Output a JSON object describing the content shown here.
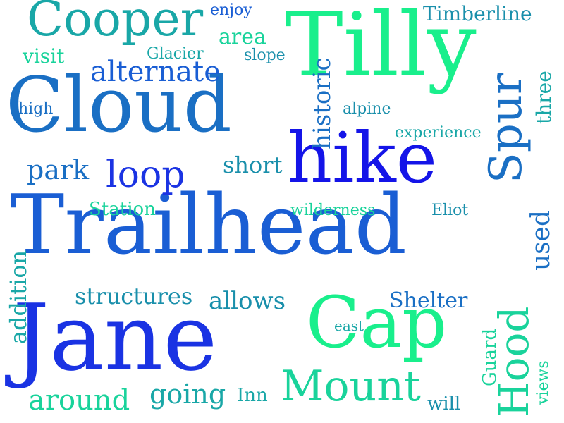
{
  "colors": {
    "background": "#ffffff",
    "bright_green": "#19ef8c",
    "sea_green": "#19d39b",
    "teal": "#19a7a7",
    "dark_teal": "#198fab",
    "steel_blue": "#1a6fc4",
    "mid_blue": "#1a5ed4",
    "royal_blue": "#1a33e3",
    "deep_blue": "#1414e8"
  },
  "words": [
    {
      "text": "Trailhead",
      "color": "#1a5ed4"
    },
    {
      "text": "Jane",
      "color": "#1a33e3"
    },
    {
      "text": "Tilly",
      "color": "#19ef8c"
    },
    {
      "text": "Cloud",
      "color": "#1a6fc4"
    },
    {
      "text": "hike",
      "color": "#1414e8"
    },
    {
      "text": "Cap",
      "color": "#19ef8c"
    },
    {
      "text": "Cooper",
      "color": "#19a7a7"
    },
    {
      "text": "Mount",
      "color": "#19d39b"
    },
    {
      "text": "Spur",
      "color": "#1a6fc4"
    },
    {
      "text": "Hood",
      "color": "#19d39b"
    },
    {
      "text": "loop",
      "color": "#1a33e3"
    },
    {
      "text": "alternate",
      "color": "#1a5ed4"
    },
    {
      "text": "Timberline",
      "color": "#198fab"
    },
    {
      "text": "used",
      "color": "#1a6fc4"
    },
    {
      "text": "historic",
      "color": "#1a6fc4"
    },
    {
      "text": "three",
      "color": "#19a7a7"
    },
    {
      "text": "park",
      "color": "#1a6fc4"
    },
    {
      "text": "short",
      "color": "#198fab"
    },
    {
      "text": "going",
      "color": "#19a7a7"
    },
    {
      "text": "around",
      "color": "#19d39b"
    },
    {
      "text": "allows",
      "color": "#198fab"
    },
    {
      "text": "structures",
      "color": "#198fab"
    },
    {
      "text": "Shelter",
      "color": "#1a6fc4"
    },
    {
      "text": "addition",
      "color": "#19a7a7"
    },
    {
      "text": "Station",
      "color": "#19d39b"
    },
    {
      "text": "area",
      "color": "#19d39b"
    },
    {
      "text": "visit",
      "color": "#19d39b"
    },
    {
      "text": "Guard",
      "color": "#19d39b"
    },
    {
      "text": "enjoy",
      "color": "#1a5ed4"
    },
    {
      "text": "Glacier",
      "color": "#19a7a7"
    },
    {
      "text": "slope",
      "color": "#198fab"
    },
    {
      "text": "high",
      "color": "#1a6fc4"
    },
    {
      "text": "alpine",
      "color": "#198fab"
    },
    {
      "text": "experience",
      "color": "#19a7a7"
    },
    {
      "text": "wilderness",
      "color": "#19d39b"
    },
    {
      "text": "Eliot",
      "color": "#198fab"
    },
    {
      "text": "east",
      "color": "#19a7a7"
    },
    {
      "text": "Inn",
      "color": "#19a7a7"
    },
    {
      "text": "will",
      "color": "#198fab"
    },
    {
      "text": "views",
      "color": "#19d39b"
    }
  ]
}
